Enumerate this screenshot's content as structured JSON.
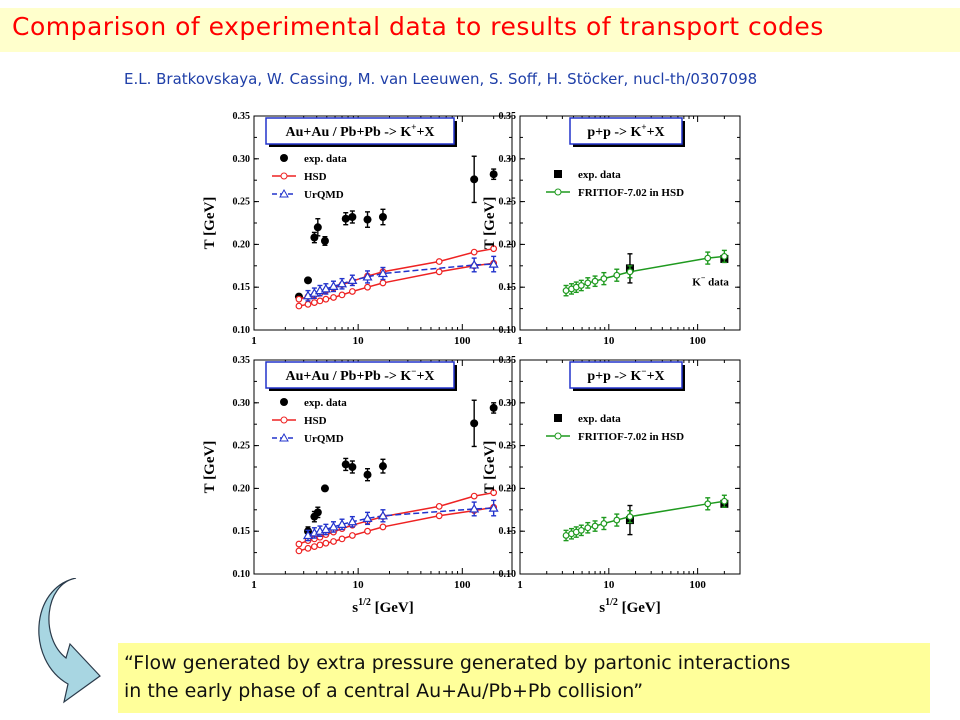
{
  "header": {
    "title": "Comparison of experimental data to results of transport codes",
    "authors": "E.L. Bratkovskaya, W. Cassing, M. van Leeuwen, S. Soff, H. Stöcker, nucl-th/0307098"
  },
  "colors": {
    "title": "#ff0000",
    "title_bg": "#ffffcc",
    "authors": "#1f3fa8",
    "quote_bg": "#ffff9a",
    "hsd": "#ee2222",
    "urqmd": "#2233cc",
    "fritiof": "#1f9a1f",
    "exp": "#000000",
    "arrow_fill": "#a8d6e2"
  },
  "figure": {
    "ylabel": "T [GeV]",
    "xlabel_base": "s",
    "xlabel_sup": "1/2",
    "xlabel_unit": "[GeV]"
  },
  "quote": {
    "line1": "“Flow generated by extra pressure generated by partonic interactions",
    "line2": "in the early phase of a central Au+Au/Pb+Pb collision”"
  },
  "chart_data": [
    {
      "id": "AA_Kp",
      "type": "line",
      "x_scale": "log",
      "xlim": [
        1,
        300
      ],
      "ylim": [
        0.1,
        0.35
      ],
      "xticks": [
        1,
        10,
        100
      ],
      "yticks": [
        0.1,
        0.15,
        0.2,
        0.25,
        0.3,
        0.35
      ],
      "title_parts": [
        "Au+Au / Pb+Pb  -> K",
        "+",
        "+X"
      ],
      "legend": [
        "exp. data",
        "HSD",
        "UrQMD"
      ],
      "annotation": "",
      "series": [
        {
          "name": "exp. data",
          "kind": "exp_circle",
          "color": "#000000",
          "x": [
            2.7,
            3.3,
            3.8,
            4.1,
            4.8,
            7.6,
            8.8,
            12.3,
            17.3,
            130,
            200
          ],
          "y": [
            0.139,
            0.158,
            0.208,
            0.22,
            0.204,
            0.23,
            0.232,
            0.229,
            0.232,
            0.276,
            0.282
          ],
          "err": [
            0,
            0,
            0.006,
            0.01,
            0.005,
            0.007,
            0.007,
            0.009,
            0.009,
            0.027,
            0.006
          ]
        },
        {
          "name": "HSD",
          "kind": "line_hollow",
          "color": "#ee2222",
          "x": [
            2.7,
            3.3,
            3.8,
            4.3,
            4.9,
            5.8,
            7.0,
            8.8,
            12.3,
            17.3,
            60,
            130,
            200
          ],
          "y": [
            0.136,
            0.139,
            0.141,
            0.143,
            0.146,
            0.149,
            0.153,
            0.157,
            0.163,
            0.168,
            0.18,
            0.191,
            0.195
          ]
        },
        {
          "name": "HSD",
          "kind": "line_hollow",
          "color": "#ee2222",
          "x": [
            2.7,
            3.3,
            3.8,
            4.3,
            4.9,
            5.8,
            7.0,
            8.8,
            12.3,
            17.3,
            60,
            130,
            200
          ],
          "y": [
            0.128,
            0.13,
            0.132,
            0.134,
            0.136,
            0.138,
            0.141,
            0.145,
            0.15,
            0.155,
            0.168,
            0.175,
            0.178
          ]
        },
        {
          "name": "UrQMD",
          "kind": "dash_triangle",
          "color": "#2233cc",
          "x": [
            3.3,
            3.8,
            4.3,
            4.9,
            5.8,
            7.0,
            8.8,
            12.3,
            17.3,
            130,
            200
          ],
          "y": [
            0.14,
            0.143,
            0.146,
            0.148,
            0.151,
            0.154,
            0.158,
            0.162,
            0.166,
            0.176,
            0.177
          ],
          "err": [
            0.006,
            0.006,
            0.006,
            0.006,
            0.006,
            0.006,
            0.006,
            0.007,
            0.007,
            0.008,
            0.009
          ]
        }
      ]
    },
    {
      "id": "pp_Kp",
      "type": "line",
      "x_scale": "log",
      "xlim": [
        1,
        300
      ],
      "ylim": [
        0.1,
        0.35
      ],
      "xticks": [
        1,
        10,
        100
      ],
      "yticks": [
        0.1,
        0.15,
        0.2,
        0.25,
        0.3,
        0.35
      ],
      "title_parts": [
        "p+p -> K",
        "+",
        "+X"
      ],
      "legend": [
        "exp. data",
        "FRITIOF-7.02 in HSD"
      ],
      "annotation_parts": [
        "K",
        "−",
        " data"
      ],
      "series": [
        {
          "name": "exp. data",
          "kind": "exp_square",
          "color": "#000000",
          "x": [
            17.3,
            200
          ],
          "y": [
            0.172,
            0.183
          ],
          "err": [
            0.017,
            0.004
          ]
        },
        {
          "name": "FRITIOF-7.02 in HSD",
          "kind": "line_hollow",
          "color": "#1f9a1f",
          "x": [
            3.3,
            3.8,
            4.3,
            4.9,
            5.8,
            7.0,
            8.8,
            12.3,
            17.3,
            130,
            200
          ],
          "y": [
            0.146,
            0.148,
            0.15,
            0.152,
            0.155,
            0.157,
            0.16,
            0.164,
            0.168,
            0.184,
            0.186
          ],
          "err": [
            0.006,
            0.006,
            0.006,
            0.006,
            0.006,
            0.006,
            0.007,
            0.007,
            0.007,
            0.007,
            0.007
          ]
        }
      ]
    },
    {
      "id": "AA_Km",
      "type": "line",
      "x_scale": "log",
      "xlim": [
        1,
        300
      ],
      "ylim": [
        0.1,
        0.35
      ],
      "xticks": [
        1,
        10,
        100
      ],
      "yticks": [
        0.1,
        0.15,
        0.2,
        0.25,
        0.3,
        0.35
      ],
      "title_parts": [
        "Au+Au / Pb+Pb  -> K",
        "−",
        "+X"
      ],
      "legend": [
        "exp. data",
        "HSD",
        "UrQMD"
      ],
      "annotation": "",
      "series": [
        {
          "name": "exp. data",
          "kind": "exp_circle",
          "color": "#000000",
          "x": [
            3.3,
            3.8,
            4.1,
            4.8,
            7.6,
            8.8,
            12.3,
            17.3,
            130,
            200
          ],
          "y": [
            0.15,
            0.167,
            0.172,
            0.2,
            0.228,
            0.225,
            0.216,
            0.226,
            0.276,
            0.294
          ],
          "err": [
            0.005,
            0.006,
            0.006,
            0,
            0.007,
            0.007,
            0.007,
            0.008,
            0.027,
            0.006
          ]
        },
        {
          "name": "HSD",
          "kind": "line_hollow",
          "color": "#ee2222",
          "x": [
            2.7,
            3.3,
            3.8,
            4.3,
            4.9,
            5.8,
            7.0,
            8.8,
            12.3,
            17.3,
            60,
            130,
            200
          ],
          "y": [
            0.135,
            0.139,
            0.141,
            0.143,
            0.146,
            0.149,
            0.153,
            0.157,
            0.162,
            0.167,
            0.179,
            0.191,
            0.195
          ]
        },
        {
          "name": "HSD",
          "kind": "line_hollow",
          "color": "#ee2222",
          "x": [
            2.7,
            3.3,
            3.8,
            4.3,
            4.9,
            5.8,
            7.0,
            8.8,
            12.3,
            17.3,
            60,
            130,
            200
          ],
          "y": [
            0.127,
            0.13,
            0.132,
            0.134,
            0.136,
            0.138,
            0.141,
            0.145,
            0.15,
            0.155,
            0.168,
            0.174,
            0.178
          ]
        },
        {
          "name": "UrQMD",
          "kind": "dash_triangle",
          "color": "#2233cc",
          "x": [
            3.3,
            3.8,
            4.3,
            4.9,
            5.8,
            7.0,
            8.8,
            12.3,
            17.3,
            130,
            200
          ],
          "y": [
            0.145,
            0.148,
            0.15,
            0.152,
            0.155,
            0.158,
            0.161,
            0.165,
            0.168,
            0.176,
            0.177
          ],
          "err": [
            0.006,
            0.006,
            0.006,
            0.006,
            0.006,
            0.006,
            0.006,
            0.007,
            0.007,
            0.008,
            0.009
          ]
        }
      ]
    },
    {
      "id": "pp_Km",
      "type": "line",
      "x_scale": "log",
      "xlim": [
        1,
        300
      ],
      "ylim": [
        0.1,
        0.35
      ],
      "xticks": [
        1,
        10,
        100
      ],
      "yticks": [
        0.1,
        0.15,
        0.2,
        0.25,
        0.3,
        0.35
      ],
      "title_parts": [
        "p+p -> K",
        "−",
        "+X"
      ],
      "legend": [
        "exp. data",
        "FRITIOF-7.02 in HSD"
      ],
      "annotation": "",
      "series": [
        {
          "name": "exp. data",
          "kind": "exp_square",
          "color": "#000000",
          "x": [
            17.3,
            200
          ],
          "y": [
            0.163,
            0.182
          ],
          "err": [
            0.017,
            0.004
          ]
        },
        {
          "name": "FRITIOF-7.02 in HSD",
          "kind": "line_hollow",
          "color": "#1f9a1f",
          "x": [
            3.3,
            3.8,
            4.3,
            4.9,
            5.8,
            7.0,
            8.8,
            12.3,
            17.3,
            130,
            200
          ],
          "y": [
            0.145,
            0.147,
            0.149,
            0.151,
            0.154,
            0.156,
            0.159,
            0.163,
            0.167,
            0.182,
            0.185
          ],
          "err": [
            0.006,
            0.006,
            0.006,
            0.006,
            0.006,
            0.006,
            0.007,
            0.007,
            0.007,
            0.007,
            0.007
          ]
        }
      ]
    }
  ]
}
